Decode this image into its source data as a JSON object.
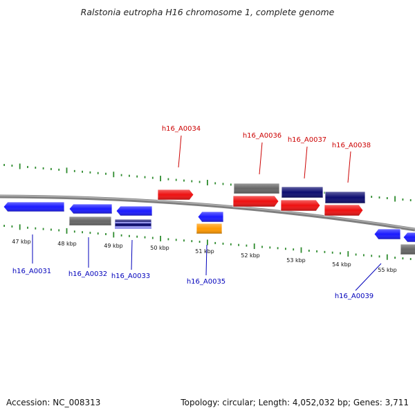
{
  "title": "Ralstonia eutropha H16 chromosome 1, complete genome",
  "footer": {
    "accession": "Accession: NC_008313",
    "summary": "Topology: circular; Length: 4,052,032 bp; Genes: 3,711"
  },
  "colors": {
    "backbone": "#7f7f7f",
    "tick": "#2e8b2e",
    "gene_blue": "#1a1aff",
    "gene_red": "#ee1111",
    "gene_gray": "#666666",
    "gene_navy": "#0d0d70",
    "gene_orange": "#ff9900",
    "gene_lavender": "#9999ee",
    "label_red": "#cc0000",
    "label_blue": "#0000bb"
  },
  "kbp_labels": [
    "47 kbp",
    "48 kbp",
    "49 kbp",
    "50 kbp",
    "51 kbp",
    "52 kbp",
    "53 kbp",
    "54 kbp",
    "55 kbp"
  ],
  "gene_labels": [
    {
      "text": "h16_A0031",
      "color": "blue"
    },
    {
      "text": "h16_A0032",
      "color": "blue"
    },
    {
      "text": "h16_A0033",
      "color": "blue"
    },
    {
      "text": "h16_A0034",
      "color": "red"
    },
    {
      "text": "h16_A0035",
      "color": "blue"
    },
    {
      "text": "h16_A0036",
      "color": "red"
    },
    {
      "text": "h16_A0037",
      "color": "red"
    },
    {
      "text": "h16_A0038",
      "color": "red"
    },
    {
      "text": "h16_A0039",
      "color": "blue"
    }
  ],
  "features": [
    {
      "name": "feature-blue-1",
      "color": "blue",
      "direction": "left"
    },
    {
      "name": "feature-blue-2",
      "color": "blue",
      "direction": "left"
    },
    {
      "name": "feature-gray-1",
      "color": "gray",
      "direction": "none"
    },
    {
      "name": "feature-blue-3",
      "color": "blue",
      "direction": "left"
    },
    {
      "name": "feature-navy-1",
      "color": "navy",
      "direction": "none"
    },
    {
      "name": "feature-red-1",
      "color": "red",
      "direction": "right"
    },
    {
      "name": "feature-blue-4",
      "color": "blue",
      "direction": "left"
    },
    {
      "name": "feature-orange-1",
      "color": "orange",
      "direction": "none"
    },
    {
      "name": "feature-gray-2",
      "color": "gray",
      "direction": "none"
    },
    {
      "name": "feature-red-2",
      "color": "red",
      "direction": "right"
    },
    {
      "name": "feature-navy-2",
      "color": "navy",
      "direction": "none"
    },
    {
      "name": "feature-red-3",
      "color": "red",
      "direction": "right"
    },
    {
      "name": "feature-navy-3",
      "color": "navy",
      "direction": "none"
    },
    {
      "name": "feature-red-4",
      "color": "red",
      "direction": "right"
    },
    {
      "name": "feature-blue-5",
      "color": "blue",
      "direction": "left"
    },
    {
      "name": "feature-blue-6",
      "color": "blue",
      "direction": "left"
    },
    {
      "name": "feature-gray-3",
      "color": "gray",
      "direction": "none"
    }
  ]
}
